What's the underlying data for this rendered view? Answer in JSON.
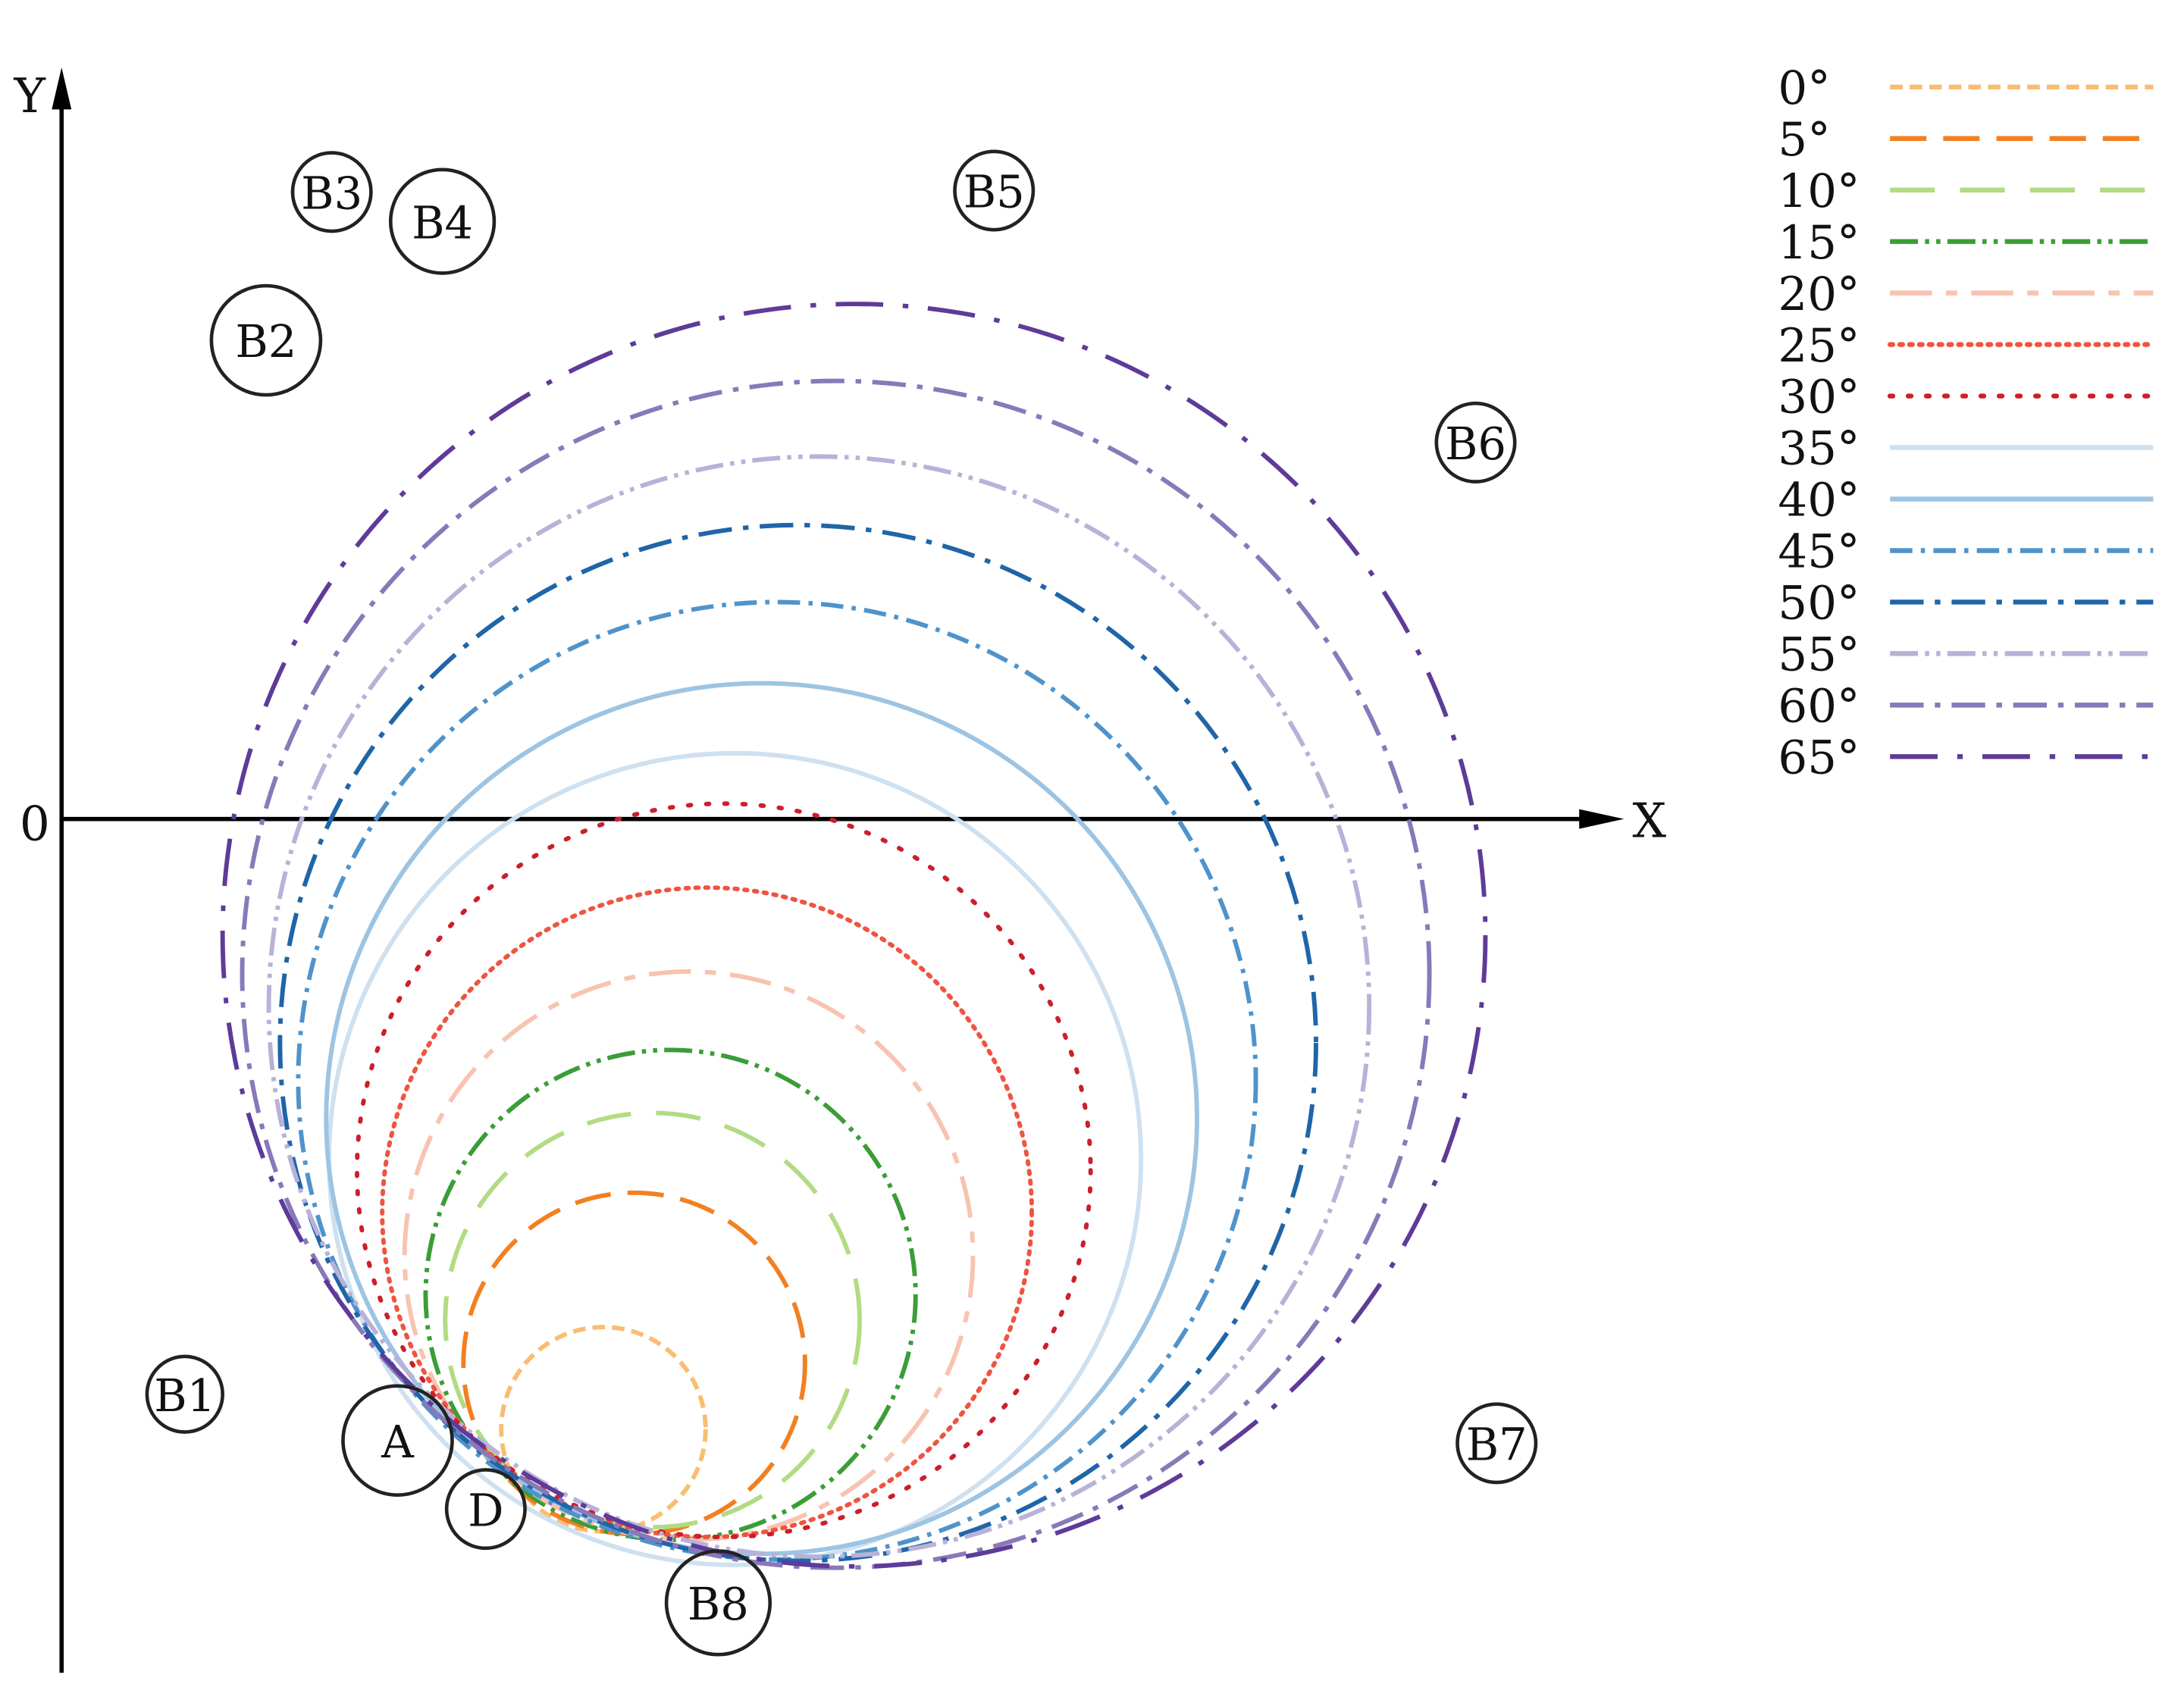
{
  "axes": {
    "x_label": "X",
    "y_label": "Y",
    "origin_label": "0"
  },
  "point_labels": [
    "B1",
    "B2",
    "B3",
    "B4",
    "B5",
    "B6",
    "B7",
    "B8",
    "A",
    "D"
  ],
  "legend": [
    {
      "label": "0°",
      "color": "#f9bd72",
      "dash": "dense-dash"
    },
    {
      "label": "5°",
      "color": "#f28021",
      "dash": "long-dash"
    },
    {
      "label": "10°",
      "color": "#b2db83",
      "dash": "long-gap-dash"
    },
    {
      "label": "15°",
      "color": "#3b9d37",
      "dash": "dash-dot-dot"
    },
    {
      "label": "20°",
      "color": "#f8c3b0",
      "dash": "long-short"
    },
    {
      "label": "25°",
      "color": "#ef5440",
      "dash": "dense-dot"
    },
    {
      "label": "30°",
      "color": "#cc1f2a",
      "dash": "sparse-dot"
    },
    {
      "label": "35°",
      "color": "#cfe0ef",
      "dash": "solid"
    },
    {
      "label": "40°",
      "color": "#9dc4e2",
      "dash": "solid"
    },
    {
      "label": "45°",
      "color": "#4f93cb",
      "dash": "dash-dot"
    },
    {
      "label": "50°",
      "color": "#1f65a8",
      "dash": "long-dash-dot"
    },
    {
      "label": "55°",
      "color": "#b8b2d8",
      "dash": "dash-dot-dot"
    },
    {
      "label": "60°",
      "color": "#8879b9",
      "dash": "long-dash-dot"
    },
    {
      "label": "65°",
      "color": "#5e3b98",
      "dash": "long-long-dot"
    }
  ]
}
